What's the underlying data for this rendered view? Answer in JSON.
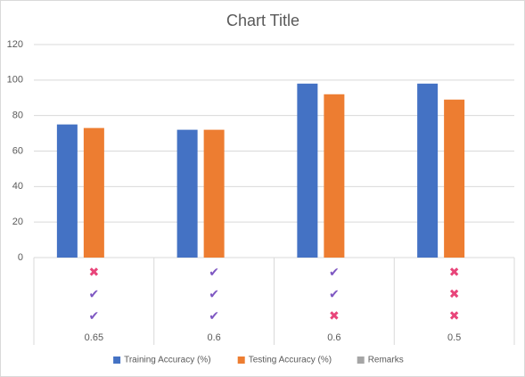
{
  "chart_data": {
    "type": "bar",
    "title": "Chart Title",
    "categories": [
      "0.65",
      "0.6",
      "0.6",
      "0.5"
    ],
    "category_levels": [
      {
        "labels": [
          "✖",
          "✔",
          "✔",
          "✖"
        ],
        "colors": [
          "#e8457a",
          "#7e57c2",
          "#7e57c2",
          "#e8457a"
        ]
      },
      {
        "labels": [
          "✔",
          "✔",
          "✔",
          "✖"
        ],
        "colors": [
          "#7e57c2",
          "#7e57c2",
          "#7e57c2",
          "#e8457a"
        ]
      },
      {
        "labels": [
          "✔",
          "✔",
          "✖",
          "✖"
        ],
        "colors": [
          "#7e57c2",
          "#7e57c2",
          "#e8457a",
          "#e8457a"
        ]
      }
    ],
    "series": [
      {
        "name": "Training Accuracy (%)",
        "color": "#4472c4",
        "values": [
          75,
          72,
          98,
          98
        ]
      },
      {
        "name": "Testing Accuracy (%)",
        "color": "#ed7d31",
        "values": [
          73,
          72,
          92,
          89
        ]
      },
      {
        "name": "Remarks",
        "color": "#a5a5a5",
        "values": [
          null,
          null,
          null,
          null
        ]
      }
    ],
    "ylim": [
      0,
      120
    ],
    "yticks": [
      0,
      20,
      40,
      60,
      80,
      100,
      120
    ],
    "grid": true,
    "legend": "bottom"
  }
}
